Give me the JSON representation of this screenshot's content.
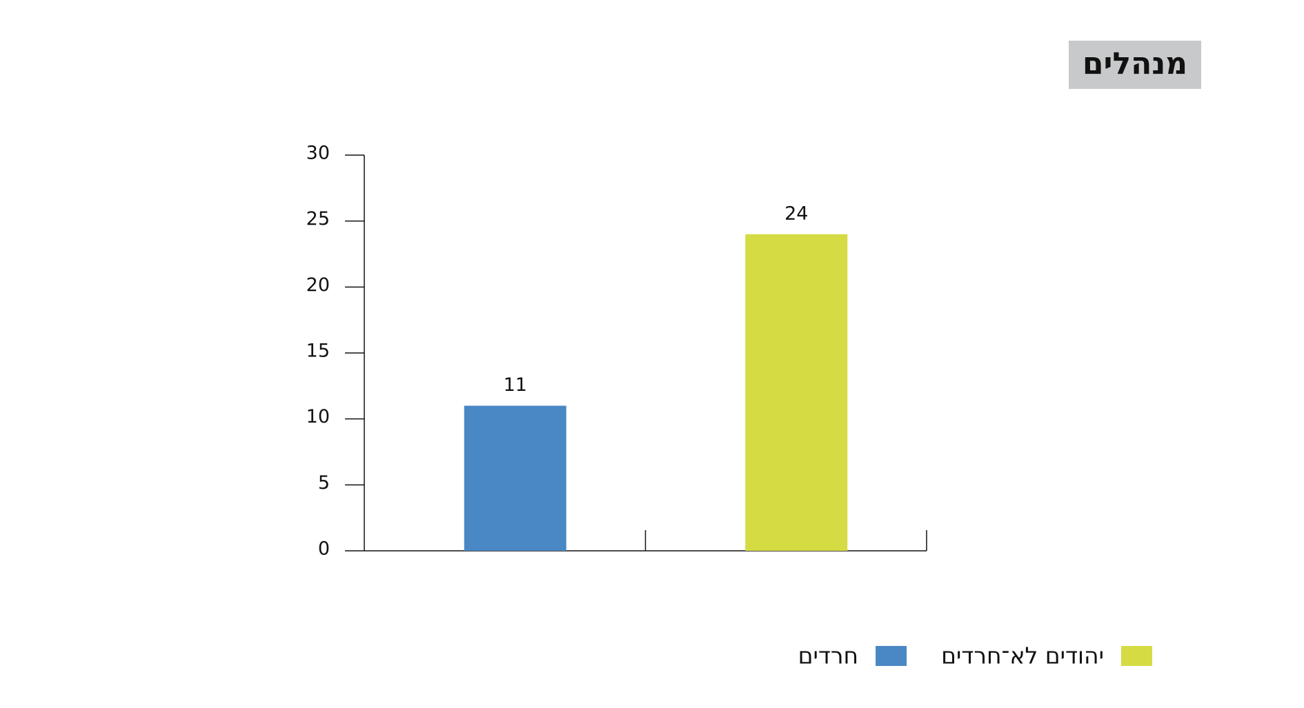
{
  "chart_data": {
    "type": "bar",
    "title": "מנהלים",
    "categories": [
      null,
      null
    ],
    "series": [
      {
        "name": "חרדים",
        "color": "#4a87c5",
        "values": [
          11,
          null
        ]
      },
      {
        "name": "יהודים לא־חרדים",
        "color": "#d5db43",
        "values": [
          null,
          24
        ]
      }
    ],
    "ylim": [
      0,
      30
    ],
    "yticks": [
      0,
      5,
      10,
      15,
      20,
      25,
      30
    ]
  }
}
